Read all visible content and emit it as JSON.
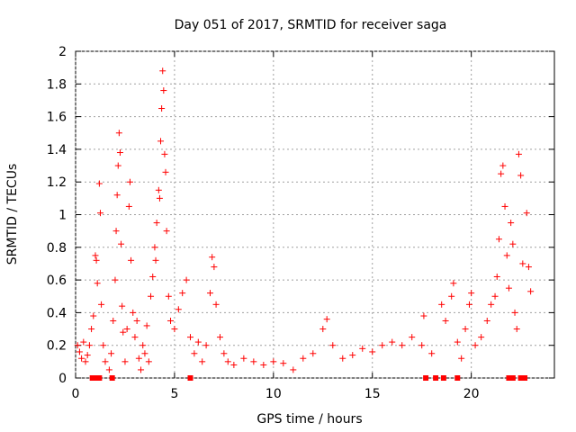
{
  "chart_data": {
    "type": "scatter",
    "title": "Day 051 of 2017, SRMTID for receiver saga",
    "xlabel": "GPS time / hours",
    "ylabel": "SRMTID / TECUs",
    "xlim": [
      0,
      24.2
    ],
    "ylim": [
      0,
      2
    ],
    "xticks": [
      0,
      5,
      10,
      15,
      20
    ],
    "yticks": [
      0,
      0.2,
      0.4,
      0.6,
      0.8,
      1,
      1.2,
      1.4,
      1.6,
      1.8,
      2
    ],
    "ytick_labels": [
      "0",
      "0.2",
      "0.4",
      "0.6",
      "0.8",
      "1",
      "1.2",
      "1.4",
      "1.6",
      "1.8",
      "2"
    ],
    "grid": true,
    "series": [
      {
        "name": "SRMTID",
        "marker": "plus",
        "color": "#ff0000",
        "points": [
          [
            0.1,
            0.2
          ],
          [
            0.2,
            0.16
          ],
          [
            0.3,
            0.12
          ],
          [
            0.4,
            0.22
          ],
          [
            0.5,
            0.1
          ],
          [
            0.6,
            0.14
          ],
          [
            0.7,
            0.2
          ],
          [
            0.8,
            0.3
          ],
          [
            0.9,
            0.38
          ],
          [
            1.0,
            0.75
          ],
          [
            1.05,
            0.72
          ],
          [
            1.1,
            0.58
          ],
          [
            1.2,
            1.19
          ],
          [
            1.25,
            1.01
          ],
          [
            1.3,
            0.45
          ],
          [
            1.4,
            0.2
          ],
          [
            1.5,
            0.1
          ],
          [
            1.7,
            0.05
          ],
          [
            1.8,
            0.15
          ],
          [
            1.9,
            0.35
          ],
          [
            2.0,
            0.6
          ],
          [
            2.05,
            0.9
          ],
          [
            2.1,
            1.12
          ],
          [
            2.15,
            1.3
          ],
          [
            2.2,
            1.5
          ],
          [
            2.25,
            1.38
          ],
          [
            2.3,
            0.82
          ],
          [
            2.35,
            0.44
          ],
          [
            2.4,
            0.28
          ],
          [
            2.5,
            0.1
          ],
          [
            2.6,
            0.3
          ],
          [
            2.7,
            1.05
          ],
          [
            2.75,
            1.2
          ],
          [
            2.8,
            0.72
          ],
          [
            2.9,
            0.4
          ],
          [
            3.0,
            0.25
          ],
          [
            3.1,
            0.35
          ],
          [
            3.2,
            0.12
          ],
          [
            3.3,
            0.05
          ],
          [
            3.4,
            0.2
          ],
          [
            3.5,
            0.15
          ],
          [
            3.6,
            0.32
          ],
          [
            3.7,
            0.1
          ],
          [
            3.8,
            0.5
          ],
          [
            3.9,
            0.62
          ],
          [
            4.0,
            0.8
          ],
          [
            4.05,
            0.72
          ],
          [
            4.1,
            0.95
          ],
          [
            4.2,
            1.15
          ],
          [
            4.25,
            1.1
          ],
          [
            4.3,
            1.45
          ],
          [
            4.35,
            1.65
          ],
          [
            4.4,
            1.88
          ],
          [
            4.45,
            1.76
          ],
          [
            4.5,
            1.37
          ],
          [
            4.55,
            1.26
          ],
          [
            4.6,
            0.9
          ],
          [
            4.7,
            0.5
          ],
          [
            4.8,
            0.35
          ],
          [
            5.0,
            0.3
          ],
          [
            5.2,
            0.42
          ],
          [
            5.4,
            0.52
          ],
          [
            5.6,
            0.6
          ],
          [
            5.8,
            0.25
          ],
          [
            6.0,
            0.15
          ],
          [
            6.2,
            0.22
          ],
          [
            6.4,
            0.1
          ],
          [
            6.6,
            0.2
          ],
          [
            6.8,
            0.52
          ],
          [
            6.9,
            0.74
          ],
          [
            7.0,
            0.68
          ],
          [
            7.1,
            0.45
          ],
          [
            7.3,
            0.25
          ],
          [
            7.5,
            0.15
          ],
          [
            7.7,
            0.1
          ],
          [
            8.0,
            0.08
          ],
          [
            8.5,
            0.12
          ],
          [
            9.0,
            0.1
          ],
          [
            9.5,
            0.08
          ],
          [
            10.0,
            0.1
          ],
          [
            10.5,
            0.09
          ],
          [
            11.0,
            0.05
          ],
          [
            11.5,
            0.12
          ],
          [
            12.0,
            0.15
          ],
          [
            12.5,
            0.3
          ],
          [
            12.7,
            0.36
          ],
          [
            13.0,
            0.2
          ],
          [
            13.5,
            0.12
          ],
          [
            14.0,
            0.14
          ],
          [
            14.5,
            0.18
          ],
          [
            15.0,
            0.16
          ],
          [
            15.5,
            0.2
          ],
          [
            16.0,
            0.22
          ],
          [
            16.5,
            0.2
          ],
          [
            17.0,
            0.25
          ],
          [
            17.5,
            0.2
          ],
          [
            17.6,
            0.38
          ],
          [
            18.0,
            0.15
          ],
          [
            18.5,
            0.45
          ],
          [
            18.7,
            0.35
          ],
          [
            19.0,
            0.5
          ],
          [
            19.1,
            0.58
          ],
          [
            19.3,
            0.22
          ],
          [
            19.5,
            0.12
          ],
          [
            19.7,
            0.3
          ],
          [
            19.9,
            0.45
          ],
          [
            20.0,
            0.52
          ],
          [
            20.2,
            0.2
          ],
          [
            20.5,
            0.25
          ],
          [
            20.8,
            0.35
          ],
          [
            21.0,
            0.45
          ],
          [
            21.2,
            0.5
          ],
          [
            21.3,
            0.62
          ],
          [
            21.4,
            0.85
          ],
          [
            21.5,
            1.25
          ],
          [
            21.6,
            1.3
          ],
          [
            21.7,
            1.05
          ],
          [
            21.8,
            0.75
          ],
          [
            21.9,
            0.55
          ],
          [
            22.0,
            0.95
          ],
          [
            22.1,
            0.82
          ],
          [
            22.2,
            0.4
          ],
          [
            22.3,
            0.3
          ],
          [
            22.4,
            1.37
          ],
          [
            22.5,
            1.24
          ],
          [
            22.6,
            0.7
          ],
          [
            22.8,
            1.01
          ],
          [
            22.9,
            0.68
          ],
          [
            23.0,
            0.53
          ]
        ]
      },
      {
        "name": "filled-squares",
        "marker": "square",
        "color": "#ff0000",
        "points": [
          [
            0.85,
            0
          ],
          [
            0.95,
            0
          ],
          [
            1.05,
            0
          ],
          [
            1.2,
            0
          ],
          [
            1.85,
            0
          ],
          [
            5.8,
            0
          ],
          [
            17.7,
            0
          ],
          [
            18.2,
            0
          ],
          [
            18.6,
            0
          ],
          [
            19.3,
            0
          ],
          [
            21.9,
            0
          ],
          [
            22.1,
            0
          ],
          [
            22.5,
            0
          ],
          [
            22.7,
            0
          ]
        ]
      }
    ]
  }
}
